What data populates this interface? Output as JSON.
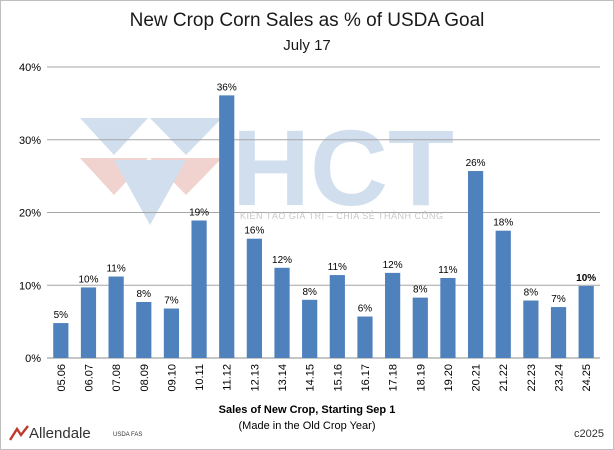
{
  "chart_data": {
    "type": "bar",
    "title": "New Crop Corn Sales as % of USDA Goal",
    "subtitle": "July 17",
    "xlabel": "Sales of New Crop, Starting Sep 1",
    "xlabel_note": "(Made in the Old Crop Year)",
    "ylabel": "",
    "ylim": [
      0,
      40
    ],
    "yticks": [
      "0%",
      "10%",
      "20%",
      "30%",
      "40%"
    ],
    "yticks_values": [
      0,
      10,
      20,
      30,
      40
    ],
    "grid": true,
    "legend": "none",
    "categories": [
      "05.06",
      "06.07",
      "07.08",
      "08.09",
      "09.10",
      "10.11",
      "11.12",
      "12.13",
      "13.14",
      "14.15",
      "15.16",
      "16.17",
      "17.18",
      "18.19",
      "19.20",
      "20.21",
      "21.22",
      "22.23",
      "23.24",
      "24.25"
    ],
    "values": [
      4.8,
      9.7,
      11.2,
      7.7,
      6.8,
      18.9,
      36.1,
      16.4,
      12.4,
      8.0,
      11.4,
      5.7,
      11.7,
      8.3,
      11.0,
      25.7,
      17.5,
      7.9,
      7.0,
      9.9
    ],
    "data_labels": [
      "5%",
      "10%",
      "11%",
      "8%",
      "7%",
      "19%",
      "36%",
      "16%",
      "12%",
      "8%",
      "11%",
      "6%",
      "12%",
      "8%",
      "11%",
      "26%",
      "18%",
      "8%",
      "7%",
      "10%"
    ],
    "highlight_last_label": true,
    "bar_color": "#4f81bd"
  },
  "footer": {
    "logo_text": "Allendale",
    "source": "USDA FAS",
    "copyright": "c2025"
  },
  "watermark": {
    "brand": "HCT",
    "tagline": "KIẾN TẠO GIÁ TRỊ – CHIA SẺ THÀNH CÔNG"
  }
}
